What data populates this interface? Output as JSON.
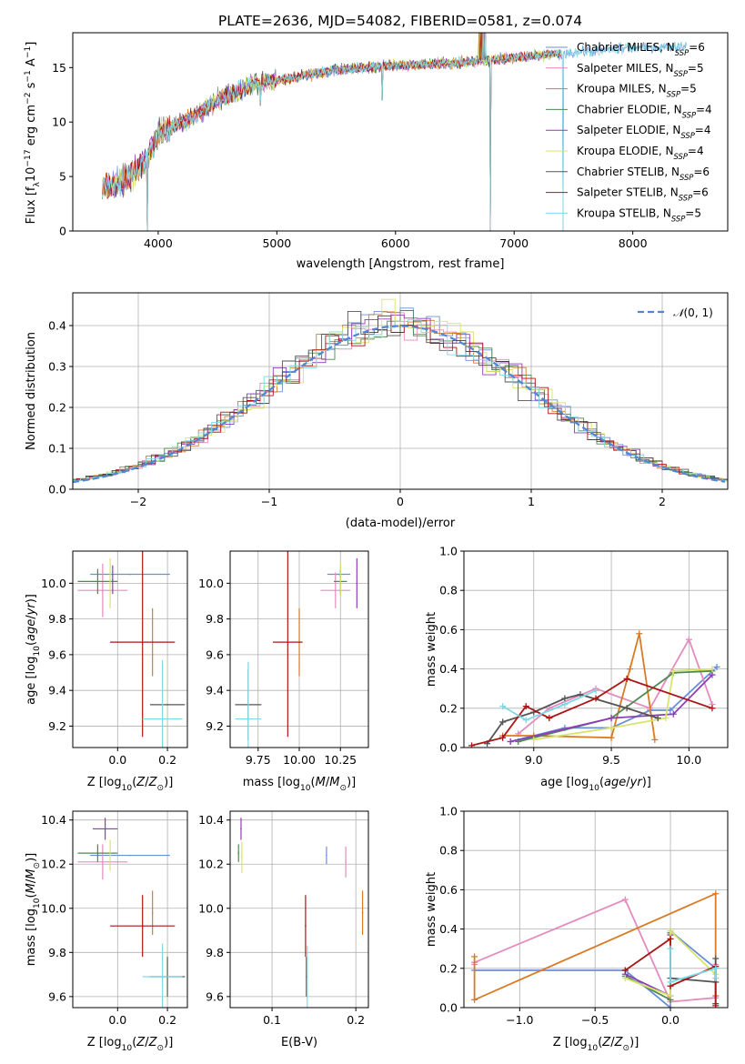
{
  "colors": [
    "#6c8ed8",
    "#e48bbf",
    "#d97a24",
    "#4f8a4f",
    "#8d3fb8",
    "#d8e36a",
    "#555555",
    "#aa1515",
    "#7dd9e4"
  ],
  "chart_data": [
    {
      "id": "spectrum",
      "type": "line",
      "title": "PLATE=2636, MJD=54082, FIBERID=0581, z=0.074",
      "xlabel": "wavelength [Angstrom, rest frame]",
      "ylabel": "Flux [f",
      "xlim": [
        3280,
        8800
      ],
      "ylim": [
        0,
        18.2
      ],
      "xticks": [
        4000,
        5000,
        6000,
        7000,
        8000
      ],
      "yticks": [
        0,
        5,
        10,
        15
      ],
      "legend_position": "right",
      "legend": [
        {
          "name": "Chabrier MILES",
          "n": "6"
        },
        {
          "name": "Salpeter MILES",
          "n": "5"
        },
        {
          "name": "Kroupa MILES",
          "n": "5"
        },
        {
          "name": "Chabrier ELODIE",
          "n": "4"
        },
        {
          "name": "Salpeter ELODIE",
          "n": "4"
        },
        {
          "name": "Kroupa ELODIE",
          "n": "4"
        },
        {
          "name": "Chabrier STELIB",
          "n": "6"
        },
        {
          "name": "Salpeter STELIB",
          "n": "6"
        },
        {
          "name": "Kroupa STELIB",
          "n": "5"
        }
      ],
      "continuum_x": [
        3530,
        3700,
        3850,
        3950,
        4000,
        4300,
        4500,
        4800,
        5100,
        5500,
        6000,
        6500,
        7000,
        7500,
        8000,
        8450
      ],
      "continuum_y": [
        4.0,
        4.5,
        6.0,
        7.5,
        9.0,
        10.5,
        12.0,
        13.5,
        14.0,
        14.8,
        15.2,
        15.4,
        15.9,
        16.4,
        16.8,
        17.0
      ],
      "dips": [
        {
          "x": 3910,
          "y": 0
        },
        {
          "x": 6800,
          "y": 0
        },
        {
          "x": 7410,
          "y": 0
        },
        {
          "x": 5890,
          "y": 12.0
        },
        {
          "x": 4860,
          "y": 11.5
        }
      ]
    },
    {
      "id": "residuals",
      "type": "histogram",
      "xlabel": "(data-model)/error",
      "ylabel": "Normed distribution",
      "xlim": [
        -2.5,
        2.5
      ],
      "ylim": [
        0,
        0.48
      ],
      "xticks": [
        -2,
        -1,
        0,
        1,
        2
      ],
      "yticks": [
        0.0,
        0.1,
        0.2,
        0.3,
        0.4
      ],
      "grid": true,
      "legend_position": "top-right",
      "reference_curve": {
        "label": "(0, 1)",
        "mean": 0,
        "sigma": 1
      },
      "bin_width": 0.1
    },
    {
      "id": "age_vs_Z",
      "type": "scatter",
      "xlabel": "Z [log",
      "ylabel": "age  [log",
      "xlim": [
        -0.18,
        0.28
      ],
      "ylim": [
        9.08,
        10.18
      ],
      "xticks": [
        0.0,
        0.2
      ],
      "yticks": [
        9.2,
        9.4,
        9.6,
        9.8,
        10.0
      ],
      "grid": true,
      "points": [
        {
          "x": 0.05,
          "y": 10.05,
          "xerr": 0.16,
          "yerr": 0.0
        },
        {
          "x": -0.06,
          "y": 9.96,
          "xerr": 0.1,
          "yerr": 0.15
        },
        {
          "x": 0.14,
          "y": 9.67,
          "xerr": 0.0,
          "yerr": 0.19
        },
        {
          "x": -0.08,
          "y": 10.01,
          "xerr": 0.08,
          "yerr": 0.07
        },
        {
          "x": -0.02,
          "y": 10.02,
          "xerr": 0.0,
          "yerr": 0.08
        },
        {
          "x": -0.03,
          "y": 10.0,
          "xerr": 0.0,
          "yerr": 0.14
        },
        {
          "x": 0.2,
          "y": 9.32,
          "xerr": 0.07,
          "yerr": 0.0
        },
        {
          "x": 0.1,
          "y": 9.67,
          "xerr": 0.13,
          "yerr": 0.53
        },
        {
          "x": 0.18,
          "y": 9.24,
          "xerr": 0.08,
          "yerr": 0.33
        }
      ]
    },
    {
      "id": "age_vs_mass",
      "type": "scatter",
      "xlabel": "mass [log",
      "ylabel": "",
      "xlim": [
        9.58,
        10.42
      ],
      "ylim": [
        9.08,
        10.18
      ],
      "xticks": [
        9.75,
        10.0,
        10.25
      ],
      "xticklabels": [
        "9.75",
        "10.00",
        "10.25"
      ],
      "yticks": [
        9.2,
        9.4,
        9.6,
        9.8,
        10.0
      ],
      "grid": true,
      "points": [
        {
          "x": 10.24,
          "y": 10.05,
          "xerr": 0.07,
          "yerr": 0.0
        },
        {
          "x": 10.22,
          "y": 9.96,
          "xerr": 0.09,
          "yerr": 0.1
        },
        {
          "x": 10.0,
          "y": 9.67,
          "xerr": 0.0,
          "yerr": 0.19
        },
        {
          "x": 10.25,
          "y": 10.01,
          "xerr": 0.04,
          "yerr": 0.07
        },
        {
          "x": 10.35,
          "y": 10.0,
          "xerr": 0.0,
          "yerr": 0.14
        },
        {
          "x": 10.25,
          "y": 10.02,
          "xerr": 0.0,
          "yerr": 0.09
        },
        {
          "x": 9.69,
          "y": 9.32,
          "xerr": 0.08,
          "yerr": 0.2
        },
        {
          "x": 9.93,
          "y": 9.67,
          "xerr": 0.09,
          "yerr": 0.53
        },
        {
          "x": 9.69,
          "y": 9.24,
          "xerr": 0.08,
          "yerr": 0.32
        }
      ]
    },
    {
      "id": "massweight_vs_age",
      "type": "line",
      "xlabel": "age  [log",
      "ylabel": "mass weight",
      "xlim": [
        8.55,
        10.25
      ],
      "ylim": [
        0,
        1.0
      ],
      "xticks": [
        9.0,
        9.5,
        10.0
      ],
      "yticks": [
        0.0,
        0.2,
        0.4,
        0.6,
        0.8,
        1.0
      ],
      "grid": true,
      "series": [
        {
          "x": [
            8.85,
            9.2,
            9.5,
            9.75,
            9.88,
            10.18
          ],
          "y": [
            0.03,
            0.1,
            0.1,
            0.19,
            0.19,
            0.41
          ]
        },
        {
          "x": [
            8.9,
            9.1,
            9.4,
            9.75,
            10.0,
            10.15
          ],
          "y": [
            0.07,
            0.2,
            0.3,
            0.2,
            0.55,
            0.22
          ]
        },
        {
          "x": [
            8.8,
            9.0,
            9.5,
            9.62,
            9.68,
            9.78
          ],
          "y": [
            0.06,
            0.06,
            0.05,
            0.4,
            0.58,
            0.04
          ]
        },
        {
          "x": [
            8.9,
            9.5,
            9.9,
            10.15
          ],
          "y": [
            0.03,
            0.15,
            0.38,
            0.39
          ]
        },
        {
          "x": [
            8.85,
            9.5,
            9.9,
            10.15
          ],
          "y": [
            0.03,
            0.15,
            0.17,
            0.37
          ]
        },
        {
          "x": [
            9.0,
            9.5,
            9.85,
            9.9,
            10.15
          ],
          "y": [
            0.04,
            0.1,
            0.15,
            0.39,
            0.4
          ]
        },
        {
          "x": [
            8.7,
            8.8,
            9.0,
            9.2,
            9.3,
            9.6,
            9.8
          ],
          "y": [
            0.02,
            0.13,
            0.18,
            0.25,
            0.27,
            0.2,
            0.15
          ]
        },
        {
          "x": [
            8.6,
            8.8,
            8.95,
            9.1,
            9.4,
            9.6,
            10.15
          ],
          "y": [
            0.01,
            0.05,
            0.21,
            0.15,
            0.25,
            0.35,
            0.2
          ]
        },
        {
          "x": [
            8.8,
            8.95,
            9.2,
            9.4
          ],
          "y": [
            0.21,
            0.14,
            0.22,
            0.29
          ]
        }
      ]
    },
    {
      "id": "mass_vs_Z",
      "type": "scatter",
      "xlabel": "Z [log",
      "ylabel": "mass [log",
      "xlim": [
        -0.18,
        0.28
      ],
      "ylim": [
        9.55,
        10.44
      ],
      "xticks": [
        0.0,
        0.2
      ],
      "yticks": [
        9.6,
        9.8,
        10.0,
        10.2,
        10.4
      ],
      "grid": true,
      "points": [
        {
          "x": 0.05,
          "y": 10.24,
          "xerr": 0.16,
          "yerr": 0.0
        },
        {
          "x": -0.06,
          "y": 10.21,
          "xerr": 0.1,
          "yerr": 0.08
        },
        {
          "x": 0.14,
          "y": 9.98,
          "xerr": 0.0,
          "yerr": 0.1
        },
        {
          "x": -0.08,
          "y": 10.25,
          "xerr": 0.08,
          "yerr": 0.04
        },
        {
          "x": -0.05,
          "y": 10.36,
          "xerr": 0.05,
          "yerr": 0.05
        },
        {
          "x": -0.03,
          "y": 10.24,
          "xerr": 0.0,
          "yerr": 0.07
        },
        {
          "x": 0.2,
          "y": 9.69,
          "xerr": 0.07,
          "yerr": 0.09
        },
        {
          "x": 0.1,
          "y": 9.92,
          "xerr": 0.13,
          "yerr": 0.14
        },
        {
          "x": 0.18,
          "y": 9.69,
          "xerr": 0.08,
          "yerr": 0.15
        }
      ]
    },
    {
      "id": "mass_vs_EBV",
      "type": "scatter",
      "xlabel": "E(B-V)",
      "ylabel": "",
      "xlim": [
        0.05,
        0.215
      ],
      "ylim": [
        9.55,
        10.44
      ],
      "xticks": [
        0.1,
        0.2
      ],
      "yticks": [
        9.6,
        9.8,
        10.0,
        10.2,
        10.4
      ],
      "grid": true,
      "points": [
        {
          "x": 0.165,
          "y": 10.24,
          "xerr": 0.0,
          "yerr": 0.04
        },
        {
          "x": 0.188,
          "y": 10.21,
          "xerr": 0.0,
          "yerr": 0.07
        },
        {
          "x": 0.208,
          "y": 9.98,
          "xerr": 0.0,
          "yerr": 0.1
        },
        {
          "x": 0.06,
          "y": 10.25,
          "xerr": 0.0,
          "yerr": 0.04
        },
        {
          "x": 0.063,
          "y": 10.36,
          "xerr": 0.0,
          "yerr": 0.05
        },
        {
          "x": 0.064,
          "y": 10.23,
          "xerr": 0.0,
          "yerr": 0.07
        },
        {
          "x": 0.141,
          "y": 9.69,
          "xerr": 0.0,
          "yerr": 0.09
        },
        {
          "x": 0.14,
          "y": 9.92,
          "xerr": 0.0,
          "yerr": 0.14
        },
        {
          "x": 0.142,
          "y": 9.69,
          "xerr": 0.0,
          "yerr": 0.14
        }
      ]
    },
    {
      "id": "massweight_vs_Z",
      "type": "line",
      "xlabel": "Z [log",
      "ylabel": "mass weight",
      "xlim": [
        -1.37,
        0.38
      ],
      "ylim": [
        0,
        1.0
      ],
      "xticks": [
        -1.0,
        -0.5,
        0.0
      ],
      "xticklabels": [
        "−1.0",
        "−0.5",
        "0.0"
      ],
      "yticks": [
        0.0,
        0.2,
        0.4,
        0.6,
        0.8,
        1.0
      ],
      "grid": true,
      "series": [
        {
          "x": [
            -1.3,
            -0.3,
            0.0,
            0.0,
            0.3,
            0.3
          ],
          "y": [
            0.19,
            0.19,
            0.0,
            0.39,
            0.2,
            0.21
          ]
        },
        {
          "x": [
            -1.3,
            -1.3,
            -0.3,
            0.0,
            0.3,
            0.3
          ],
          "y": [
            0.22,
            0.23,
            0.55,
            0.03,
            0.05,
            0.22
          ]
        },
        {
          "x": [
            -1.3,
            -1.3,
            0.3,
            0.3
          ],
          "y": [
            0.26,
            0.04,
            0.58,
            0.06
          ]
        },
        {
          "x": [
            -0.3,
            0.0,
            0.0
          ],
          "y": [
            0.16,
            0.04,
            0.38
          ]
        },
        {
          "x": [
            -0.3,
            0.0,
            0.0
          ],
          "y": [
            0.17,
            0.06,
            0.37
          ]
        },
        {
          "x": [
            -0.3,
            0.0,
            0.0,
            0.3
          ],
          "y": [
            0.15,
            0.06,
            0.39,
            0.17
          ]
        },
        {
          "x": [
            0.0,
            0.3,
            0.3,
            0.3
          ],
          "y": [
            0.15,
            0.13,
            0.25,
            0.02
          ]
        },
        {
          "x": [
            -0.3,
            0.0,
            0.0,
            0.3,
            0.3
          ],
          "y": [
            0.19,
            0.35,
            0.11,
            0.21,
            0.01
          ]
        },
        {
          "x": [
            0.0,
            0.0,
            0.3,
            0.3
          ],
          "y": [
            0.3,
            0.13,
            0.2,
            0.15
          ]
        }
      ]
    }
  ]
}
